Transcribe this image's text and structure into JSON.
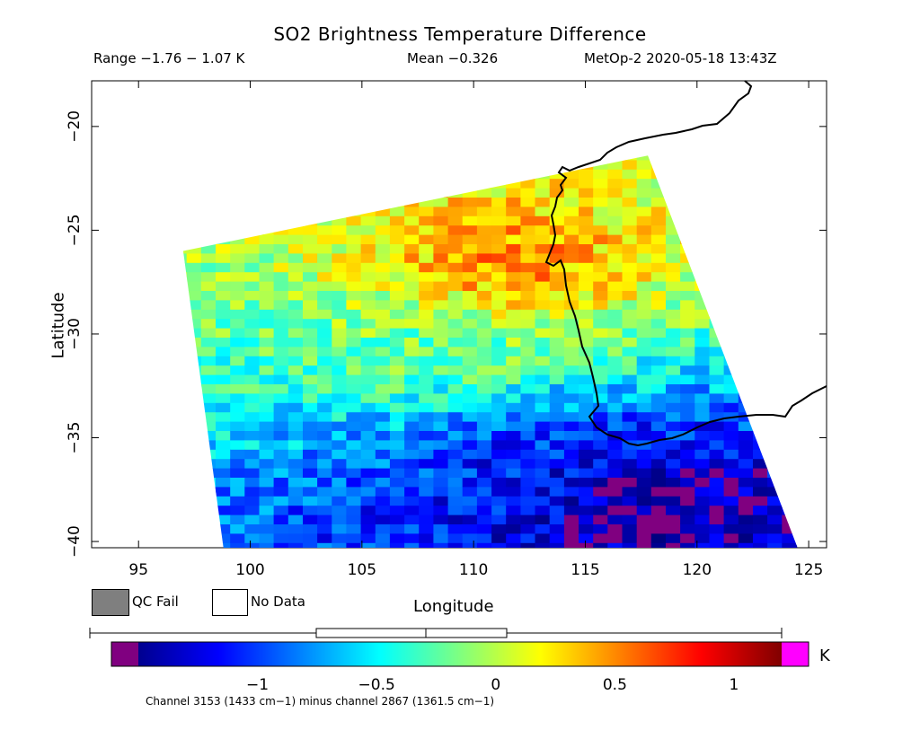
{
  "header": {
    "title": "SO2 Brightness Temperature Difference",
    "range": "Range −1.76 − 1.07 K",
    "mean": "Mean −0.326",
    "satellite": "MetOp-2 2020-05-18 13:43Z"
  },
  "legend": {
    "qc_fail": "QC Fail",
    "no_data": "No Data",
    "qc_fail_color": "#7f7f7f",
    "no_data_color": "#ffffff"
  },
  "colorbar": {
    "unit": "K",
    "ticks": [
      "−1",
      "−0.5",
      "0",
      "0.5",
      "1"
    ],
    "tick_values": [
      -1,
      -0.5,
      0,
      0.5,
      1
    ],
    "vmin": -1.5,
    "vmax": 1.2,
    "under_color": "#800080",
    "over_color": "#ff00ff",
    "caption": "Channel 3153 (1433 cm−1) minus channel 2867 (1361.5 cm−1)"
  },
  "boxplot": {
    "min": -1.76,
    "q1": -0.68,
    "median": -0.27,
    "q3": 0.03,
    "max": 1.07
  },
  "chart_data": {
    "type": "heatmap",
    "title": "SO2 Brightness Temperature Difference",
    "xlabel": "Longitude",
    "ylabel": "Latitude",
    "xlim": [
      92.9,
      125.8
    ],
    "ylim": [
      -40.3,
      -17.8
    ],
    "xticks": [
      95,
      100,
      105,
      110,
      115,
      120,
      125
    ],
    "yticks": [
      -20,
      -25,
      -30,
      -35,
      -40
    ],
    "xtick_labels": [
      "95",
      "100",
      "105",
      "110",
      "115",
      "120",
      "125"
    ],
    "ytick_labels": [
      "−20",
      "−25",
      "−30",
      "−35",
      "−40"
    ],
    "swath_corners": {
      "top_left": [
        97,
        -26.0
      ],
      "top_right": [
        117.8,
        -21.4
      ],
      "bottom_right": [
        124.5,
        -40.3
      ],
      "bottom_left": [
        98.8,
        -40.3
      ]
    },
    "value_range": [
      -1.76,
      1.07
    ],
    "mean": -0.326,
    "regions": [
      {
        "name": "north band (orange-red)",
        "lon": [
          100,
          122
        ],
        "lat": [
          -29,
          -25
        ],
        "value": 0.55
      },
      {
        "name": "central (green-yellow)",
        "lon": [
          98,
          118
        ],
        "lat": [
          -33,
          -28
        ],
        "value": -0.2
      },
      {
        "name": "south (blue)",
        "lon": [
          100,
          124
        ],
        "lat": [
          -40,
          -35
        ],
        "value": -1.1
      },
      {
        "name": "southeast (dark purple)",
        "lon": [
          112,
          122
        ],
        "lat": [
          -40,
          -37
        ],
        "value": -1.6
      }
    ]
  }
}
